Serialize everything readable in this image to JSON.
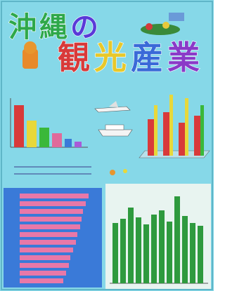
{
  "title": {
    "line1": [
      "沖",
      "縄",
      "の"
    ],
    "line2": [
      "観",
      "光",
      "産",
      "業"
    ]
  }
}
